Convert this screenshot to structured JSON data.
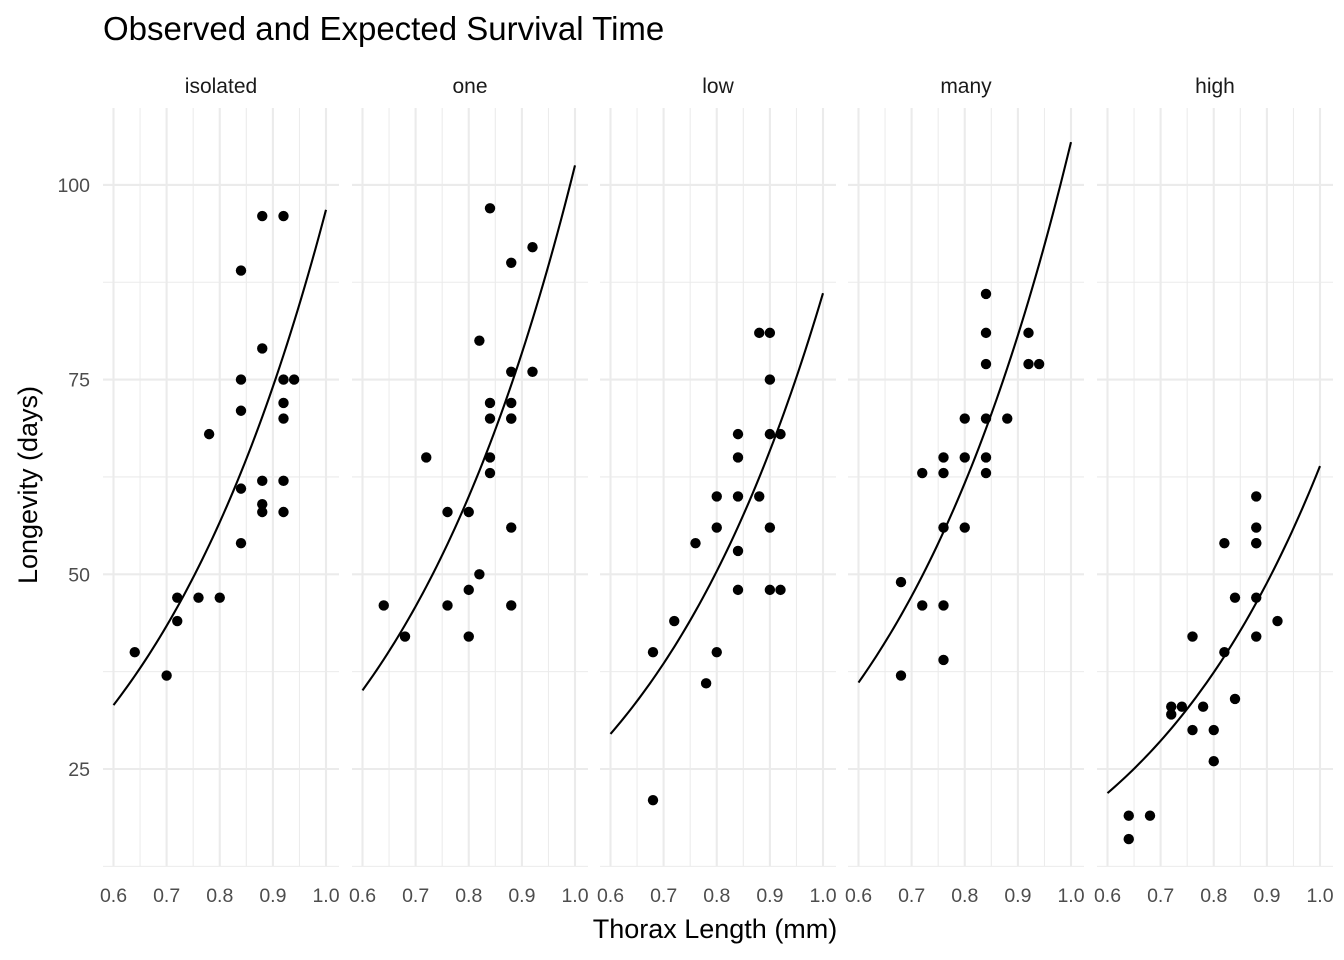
{
  "chart_data": {
    "type": "scatter",
    "title": "Observed and Expected Survival Time",
    "xlabel": "Thorax Length (mm)",
    "ylabel": "Longevity (days)",
    "xlim": [
      0.6,
      1.0
    ],
    "ylim": [
      12,
      110
    ],
    "x_ticks": [
      "0.6",
      "0.7",
      "0.8",
      "0.9",
      "1.0"
    ],
    "y_ticks": [
      "25",
      "50",
      "75",
      "100"
    ],
    "grid": true,
    "facets": [
      {
        "name": "isolated",
        "points": [
          [
            0.64,
            40
          ],
          [
            0.7,
            37
          ],
          [
            0.72,
            47
          ],
          [
            0.72,
            44
          ],
          [
            0.76,
            47
          ],
          [
            0.78,
            68
          ],
          [
            0.8,
            47
          ],
          [
            0.84,
            89
          ],
          [
            0.84,
            75
          ],
          [
            0.84,
            71
          ],
          [
            0.84,
            61
          ],
          [
            0.84,
            54
          ],
          [
            0.88,
            96
          ],
          [
            0.88,
            79
          ],
          [
            0.88,
            62
          ],
          [
            0.88,
            59
          ],
          [
            0.88,
            58
          ],
          [
            0.92,
            96
          ],
          [
            0.92,
            75
          ],
          [
            0.92,
            72
          ],
          [
            0.92,
            70
          ],
          [
            0.92,
            62
          ],
          [
            0.92,
            58
          ],
          [
            0.94,
            75
          ]
        ],
        "expected": {
          "x": [
            0.6,
            0.7,
            0.8,
            0.9,
            1.0
          ],
          "y": [
            33.2,
            43.3,
            56.6,
            74.0,
            96.8
          ]
        }
      },
      {
        "name": "one",
        "points": [
          [
            0.64,
            46
          ],
          [
            0.68,
            42
          ],
          [
            0.72,
            65
          ],
          [
            0.76,
            58
          ],
          [
            0.76,
            46
          ],
          [
            0.8,
            58
          ],
          [
            0.8,
            48
          ],
          [
            0.8,
            42
          ],
          [
            0.82,
            80
          ],
          [
            0.82,
            50
          ],
          [
            0.84,
            97
          ],
          [
            0.84,
            72
          ],
          [
            0.84,
            70
          ],
          [
            0.84,
            65
          ],
          [
            0.84,
            63
          ],
          [
            0.88,
            90
          ],
          [
            0.88,
            76
          ],
          [
            0.88,
            72
          ],
          [
            0.88,
            70
          ],
          [
            0.88,
            70
          ],
          [
            0.88,
            56
          ],
          [
            0.88,
            46
          ],
          [
            0.92,
            92
          ],
          [
            0.92,
            76
          ]
        ],
        "expected": {
          "x": [
            0.6,
            0.7,
            0.8,
            0.9,
            1.0
          ],
          "y": [
            35.1,
            45.8,
            59.9,
            78.4,
            102.5
          ]
        }
      },
      {
        "name": "low",
        "points": [
          [
            0.68,
            40
          ],
          [
            0.68,
            21
          ],
          [
            0.72,
            44
          ],
          [
            0.76,
            54
          ],
          [
            0.78,
            36
          ],
          [
            0.8,
            60
          ],
          [
            0.8,
            56
          ],
          [
            0.8,
            40
          ],
          [
            0.84,
            68
          ],
          [
            0.84,
            65
          ],
          [
            0.84,
            60
          ],
          [
            0.84,
            53
          ],
          [
            0.84,
            48
          ],
          [
            0.88,
            81
          ],
          [
            0.88,
            60
          ],
          [
            0.9,
            81
          ],
          [
            0.9,
            75
          ],
          [
            0.9,
            68
          ],
          [
            0.9,
            56
          ],
          [
            0.9,
            48
          ],
          [
            0.92,
            68
          ],
          [
            0.92,
            48
          ]
        ],
        "expected": {
          "x": [
            0.6,
            0.7,
            0.8,
            0.9,
            1.0
          ],
          "y": [
            29.5,
            38.6,
            50.4,
            65.9,
            86.1
          ]
        }
      },
      {
        "name": "many",
        "points": [
          [
            0.68,
            49
          ],
          [
            0.68,
            37
          ],
          [
            0.72,
            63
          ],
          [
            0.72,
            46
          ],
          [
            0.76,
            65
          ],
          [
            0.76,
            63
          ],
          [
            0.76,
            56
          ],
          [
            0.76,
            46
          ],
          [
            0.76,
            39
          ],
          [
            0.8,
            70
          ],
          [
            0.8,
            65
          ],
          [
            0.8,
            56
          ],
          [
            0.84,
            86
          ],
          [
            0.84,
            81
          ],
          [
            0.84,
            77
          ],
          [
            0.84,
            70
          ],
          [
            0.84,
            65
          ],
          [
            0.84,
            63
          ],
          [
            0.88,
            70
          ],
          [
            0.92,
            81
          ],
          [
            0.92,
            77
          ],
          [
            0.94,
            77
          ]
        ],
        "expected": {
          "x": [
            0.6,
            0.7,
            0.8,
            0.9,
            1.0
          ],
          "y": [
            36.1,
            47.2,
            61.7,
            80.7,
            105.5
          ]
        }
      },
      {
        "name": "high",
        "points": [
          [
            0.64,
            19
          ],
          [
            0.64,
            16
          ],
          [
            0.68,
            19
          ],
          [
            0.72,
            33
          ],
          [
            0.72,
            32
          ],
          [
            0.74,
            33
          ],
          [
            0.76,
            42
          ],
          [
            0.76,
            30
          ],
          [
            0.78,
            33
          ],
          [
            0.8,
            30
          ],
          [
            0.8,
            26
          ],
          [
            0.82,
            54
          ],
          [
            0.82,
            40
          ],
          [
            0.84,
            47
          ],
          [
            0.84,
            34
          ],
          [
            0.88,
            60
          ],
          [
            0.88,
            56
          ],
          [
            0.88,
            54
          ],
          [
            0.88,
            54
          ],
          [
            0.88,
            47
          ],
          [
            0.88,
            42
          ],
          [
            0.92,
            44
          ]
        ],
        "expected": {
          "x": [
            0.6,
            0.7,
            0.8,
            0.9,
            1.0
          ],
          "y": [
            21.9,
            28.6,
            37.4,
            48.9,
            63.9
          ]
        }
      }
    ]
  }
}
